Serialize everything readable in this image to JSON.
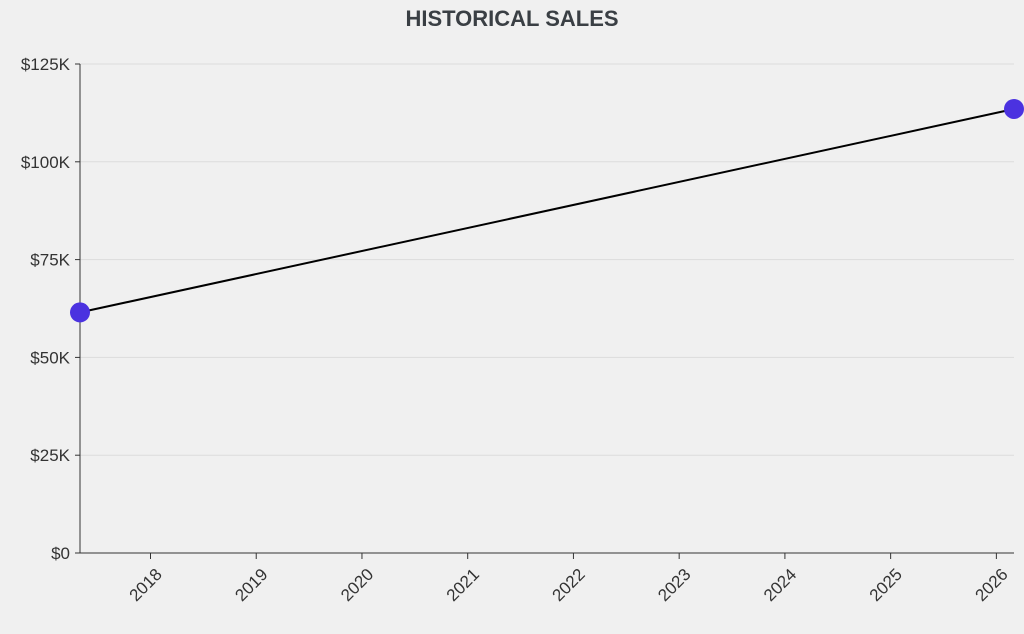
{
  "chart_data": {
    "type": "line",
    "title": "HISTORICAL SALES",
    "xlabel": "",
    "ylabel": "",
    "x_ticks": [
      "2018",
      "2019",
      "2020",
      "2021",
      "2022",
      "2023",
      "2024",
      "2025",
      "2026"
    ],
    "y_ticks": [
      "$0",
      "$25K",
      "$50K",
      "$75K",
      "$100K",
      "$125K"
    ],
    "y_tick_values": [
      0,
      25000,
      50000,
      75000,
      100000,
      125000
    ],
    "ylim": [
      0,
      125000
    ],
    "xlim": [
      "2017-05",
      "2026-03"
    ],
    "grid": "horizontal",
    "series": [
      {
        "points": [
          {
            "x": "2017-05",
            "y": 61500
          },
          {
            "x": "2026-03",
            "y": 113500
          }
        ]
      }
    ],
    "colors": {
      "line": "#000000",
      "marker": "#4b32e0",
      "background": "#f0f0f0"
    }
  }
}
